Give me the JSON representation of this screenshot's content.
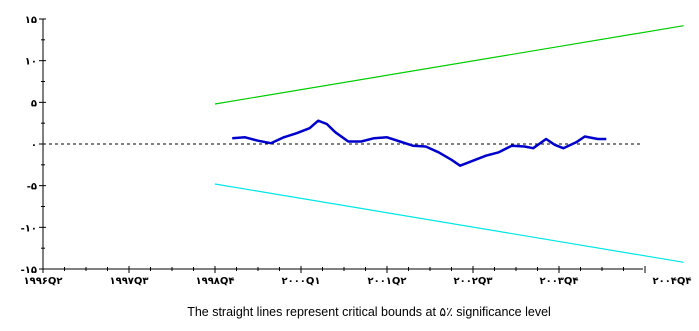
{
  "chart_data": {
    "type": "line",
    "caption": "The straight lines represent critical bounds at ۵٪ significance level",
    "xlim": [
      0,
      8
    ],
    "ylim": [
      -15,
      15
    ],
    "x_ticks": [
      {
        "x": 0,
        "label": "۱۹۹۶Q۲"
      },
      {
        "x": 1,
        "label": "۱۹۹۷Q۳"
      },
      {
        "x": 2,
        "label": "۱۹۹۸Q۴"
      },
      {
        "x": 3,
        "label": "۲۰۰۰Q۱"
      },
      {
        "x": 4,
        "label": "۲۰۰۱Q۲"
      },
      {
        "x": 5,
        "label": "۲۰۰۲Q۳"
      },
      {
        "x": 6,
        "label": "۲۰۰۳Q۴"
      },
      {
        "x": 7,
        "label": "۲۰۰۴Q۴"
      }
    ],
    "y_ticks": [
      {
        "y": 15,
        "label": "۱۵"
      },
      {
        "y": 10,
        "label": "۱۰"
      },
      {
        "y": 5,
        "label": "۵"
      },
      {
        "y": 0,
        "label": "۰"
      },
      {
        "y": -5,
        "label": "-۵"
      },
      {
        "y": -10,
        "label": "-۱۰"
      },
      {
        "y": -15,
        "label": "-۱۵"
      }
    ],
    "zero_line": {
      "y": 0,
      "style": "dashed"
    },
    "series": [
      {
        "color": "#00cc00",
        "points": [
          [
            2.0,
            4.8
          ],
          [
            7.45,
            14.2
          ]
        ]
      },
      {
        "color": "#00e5e5",
        "points": [
          [
            2.0,
            -4.8
          ],
          [
            7.45,
            -14.2
          ]
        ]
      },
      {
        "color": "#0000cc",
        "points": [
          [
            2.2,
            0.7
          ],
          [
            2.35,
            0.8
          ],
          [
            2.5,
            0.4
          ],
          [
            2.65,
            0.1
          ],
          [
            2.8,
            0.8
          ],
          [
            2.95,
            1.3
          ],
          [
            3.1,
            1.9
          ],
          [
            3.2,
            2.8
          ],
          [
            3.3,
            2.4
          ],
          [
            3.4,
            1.4
          ],
          [
            3.55,
            0.3
          ],
          [
            3.7,
            0.3
          ],
          [
            3.85,
            0.7
          ],
          [
            4.0,
            0.8
          ],
          [
            4.15,
            0.3
          ],
          [
            4.3,
            -0.2
          ],
          [
            4.45,
            -0.3
          ],
          [
            4.6,
            -1.0
          ],
          [
            4.75,
            -1.9
          ],
          [
            4.85,
            -2.6
          ],
          [
            5.0,
            -2.0
          ],
          [
            5.15,
            -1.4
          ],
          [
            5.3,
            -1.0
          ],
          [
            5.45,
            -0.2
          ],
          [
            5.6,
            -0.3
          ],
          [
            5.7,
            -0.5
          ],
          [
            5.85,
            0.6
          ],
          [
            5.95,
            -0.1
          ],
          [
            6.05,
            -0.5
          ],
          [
            6.2,
            0.2
          ],
          [
            6.3,
            0.9
          ],
          [
            6.45,
            0.6
          ],
          [
            6.55,
            0.6
          ]
        ]
      }
    ]
  }
}
